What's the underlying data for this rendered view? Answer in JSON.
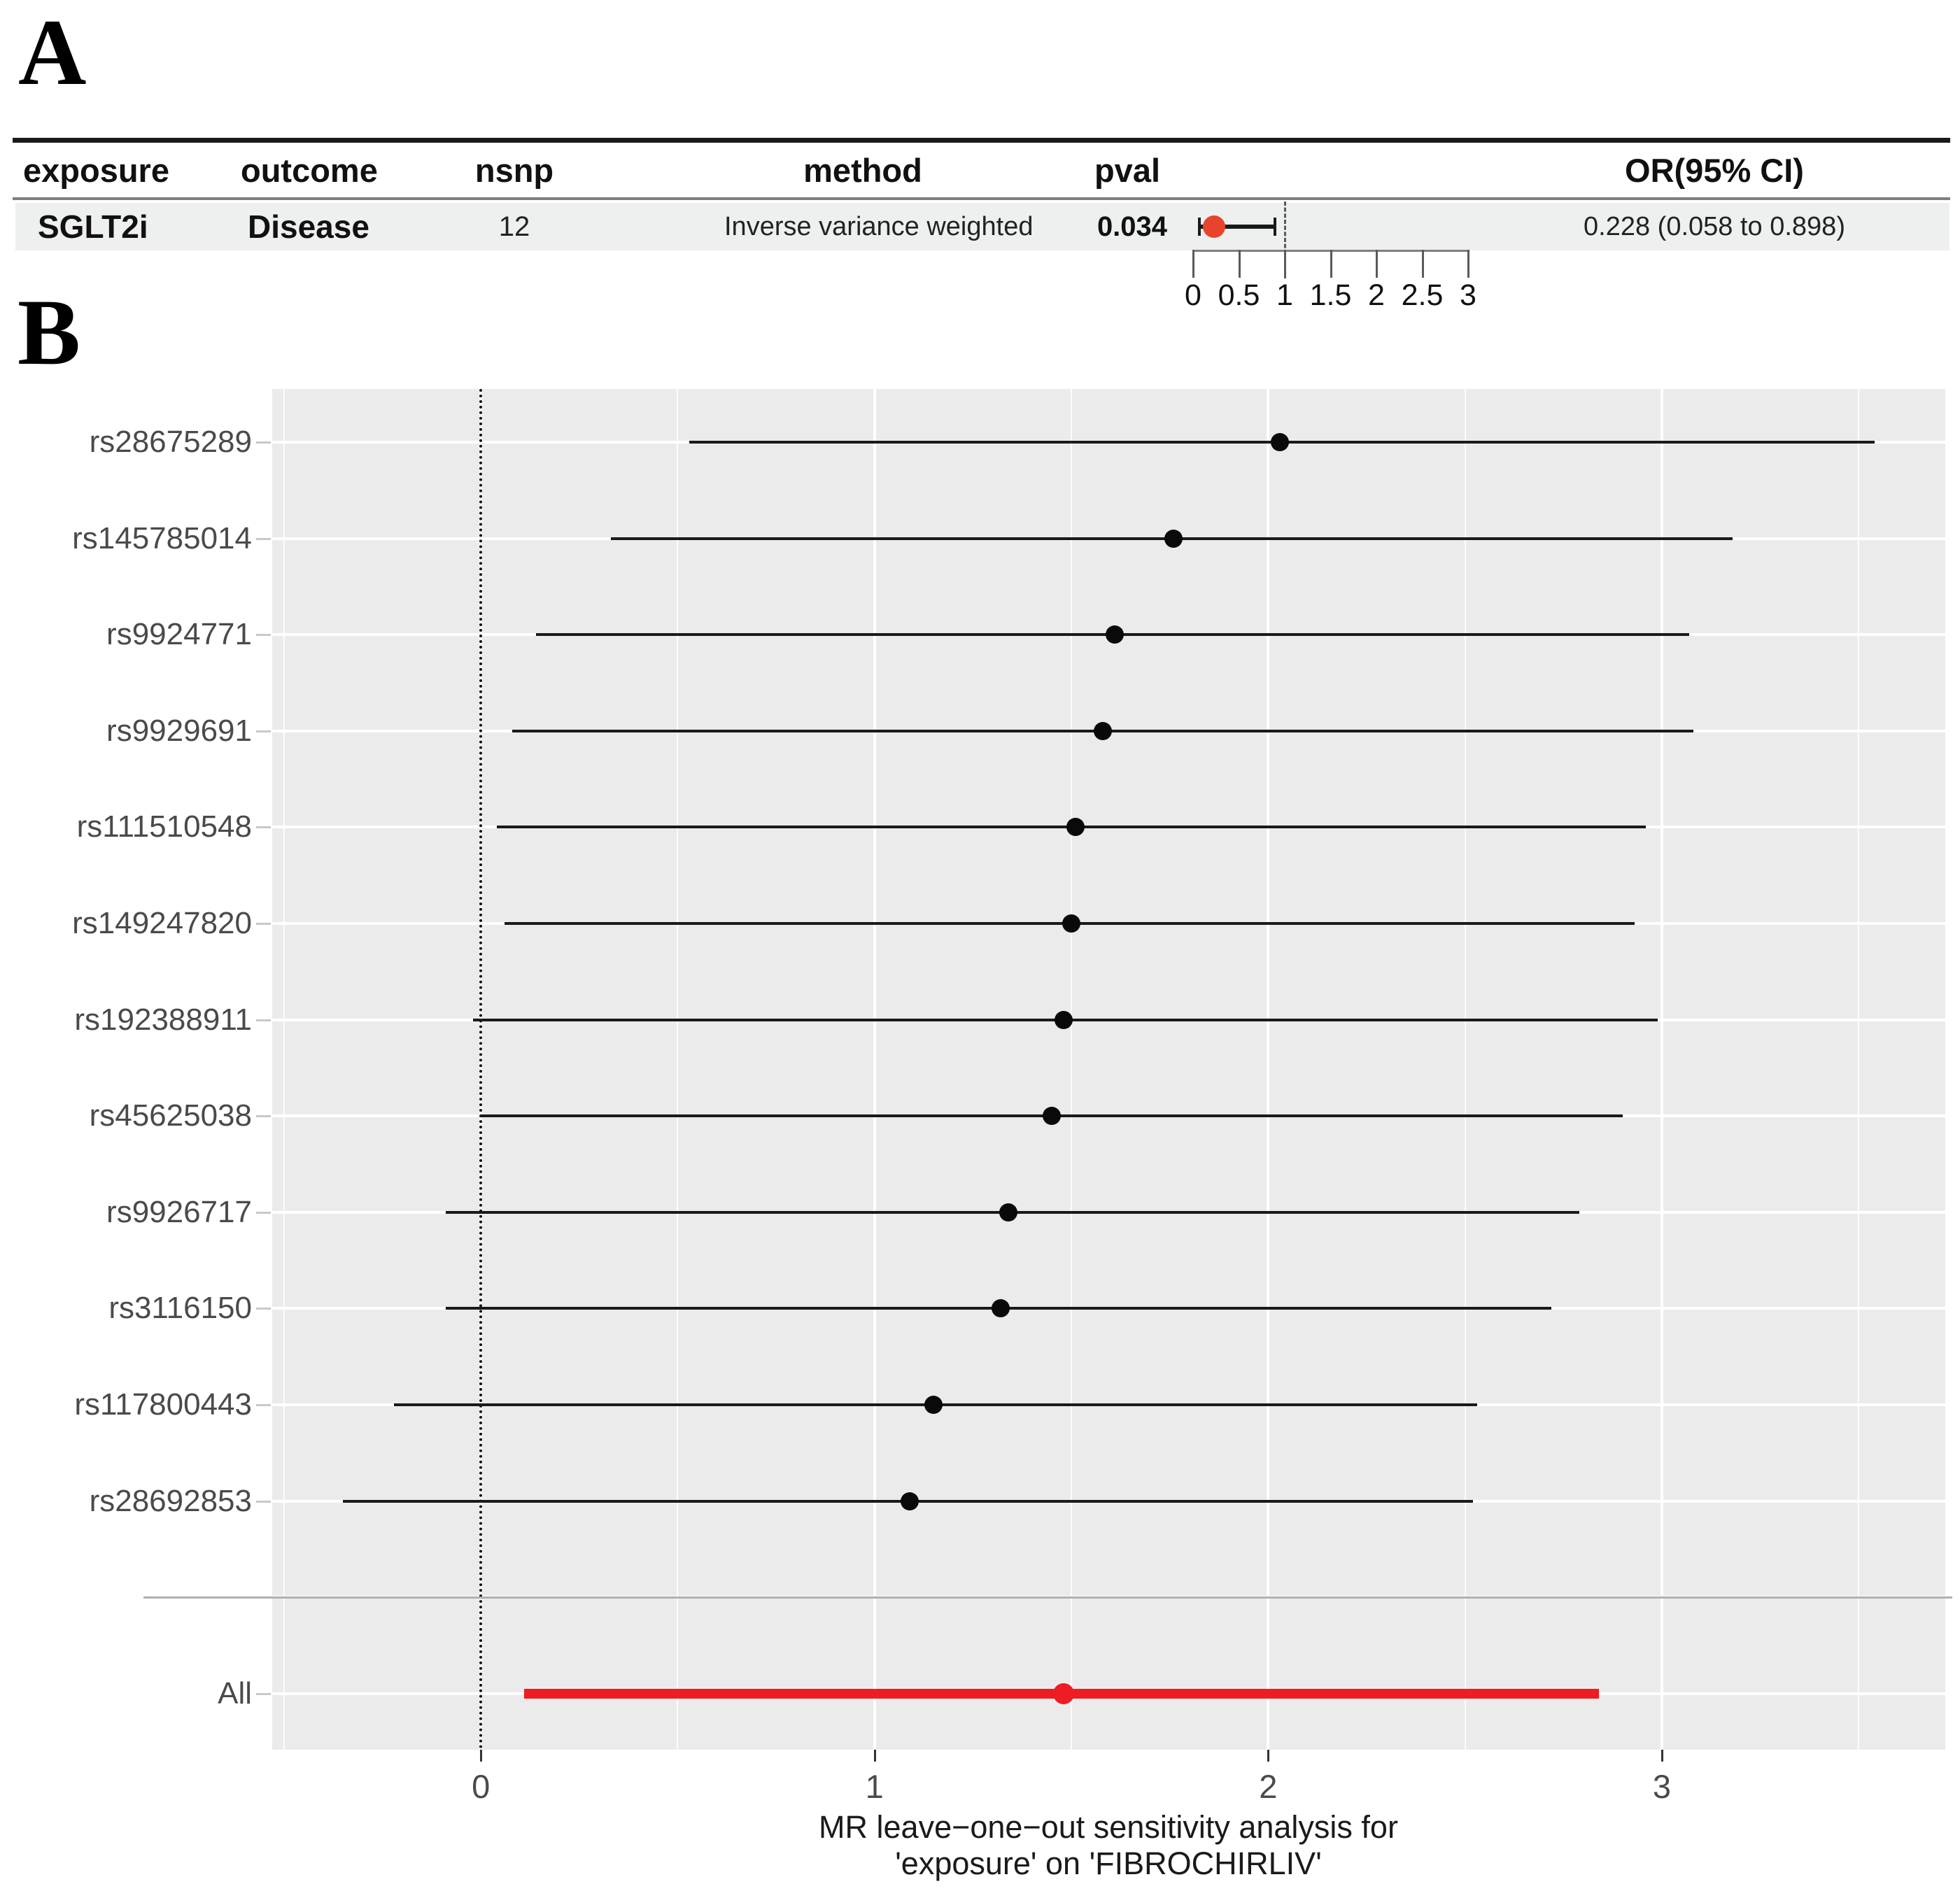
{
  "figure": {
    "panel_a_label": "A",
    "panel_b_label": "B"
  },
  "table": {
    "headers": {
      "exposure": "exposure",
      "outcome": "outcome",
      "nsnp": "nsnp",
      "method": "method",
      "pval": "pval",
      "or_ci": "OR(95% CI)"
    },
    "row": {
      "exposure": "SGLT2i",
      "outcome": "Disease",
      "nsnp": "12",
      "method": "Inverse variance weighted",
      "pval": "0.034",
      "or_ci": "0.228 (0.058 to 0.898)"
    }
  },
  "colors": {
    "panel_bg": "#ebebeb",
    "row_band_bg": "#edf0ee",
    "grid": "#ffffff",
    "ci_black": "#1a1a1a",
    "point_black": "#0a0a0a",
    "all_red": "#ee1c23",
    "mini_point_red": "#e8432d",
    "divider_gray": "#b0b0b0",
    "axis_text": "#4a4a4a"
  },
  "chart_data": [
    {
      "type": "forest",
      "panel": "A",
      "title": "",
      "points": [
        {
          "label": "Inverse variance weighted",
          "est": 0.228,
          "low": 0.058,
          "high": 0.898
        }
      ],
      "ref_line": 1,
      "xlim": [
        0,
        3
      ],
      "xticks": [
        0,
        0.5,
        1,
        1.5,
        2,
        2.5,
        3
      ],
      "xtick_labels": [
        "0",
        "0.5",
        "1",
        "1.5",
        "2",
        "2.5",
        "3"
      ]
    },
    {
      "type": "forest",
      "panel": "B",
      "xlabel_line1": "MR leave−one−out sensitivity analysis for",
      "xlabel_line2": "'exposure' on 'FIBROCHIRLIV'",
      "xlim": [
        -0.53,
        3.72
      ],
      "xticks": [
        0,
        1,
        2,
        3
      ],
      "xtick_labels": [
        "0",
        "1",
        "2",
        "3"
      ],
      "minor_gridlines": [
        -0.5,
        0.5,
        1.5,
        2.5,
        3.5
      ],
      "zero_ref_line": 0,
      "rows": [
        {
          "label": "rs28675289",
          "est": 2.03,
          "low": 0.53,
          "high": 3.54,
          "highlight": false
        },
        {
          "label": "rs145785014",
          "est": 1.76,
          "low": 0.33,
          "high": 3.18,
          "highlight": false
        },
        {
          "label": "rs9924771",
          "est": 1.61,
          "low": 0.14,
          "high": 3.07,
          "highlight": false
        },
        {
          "label": "rs9929691",
          "est": 1.58,
          "low": 0.08,
          "high": 3.08,
          "highlight": false
        },
        {
          "label": "rs111510548",
          "est": 1.51,
          "low": 0.04,
          "high": 2.96,
          "highlight": false
        },
        {
          "label": "rs149247820",
          "est": 1.5,
          "low": 0.06,
          "high": 2.93,
          "highlight": false
        },
        {
          "label": "rs192388911",
          "est": 1.48,
          "low": -0.02,
          "high": 2.99,
          "highlight": false
        },
        {
          "label": "rs45625038",
          "est": 1.45,
          "low": 0.0,
          "high": 2.9,
          "highlight": false
        },
        {
          "label": "rs9926717",
          "est": 1.34,
          "low": -0.09,
          "high": 2.79,
          "highlight": false
        },
        {
          "label": "rs3116150",
          "est": 1.32,
          "low": -0.09,
          "high": 2.72,
          "highlight": false
        },
        {
          "label": "rs117800443",
          "est": 1.15,
          "low": -0.22,
          "high": 2.53,
          "highlight": false
        },
        {
          "label": "rs28692853",
          "est": 1.09,
          "low": -0.35,
          "high": 2.52,
          "highlight": false
        },
        {
          "label": "All",
          "est": 1.48,
          "low": 0.11,
          "high": 2.84,
          "highlight": true
        }
      ]
    }
  ]
}
